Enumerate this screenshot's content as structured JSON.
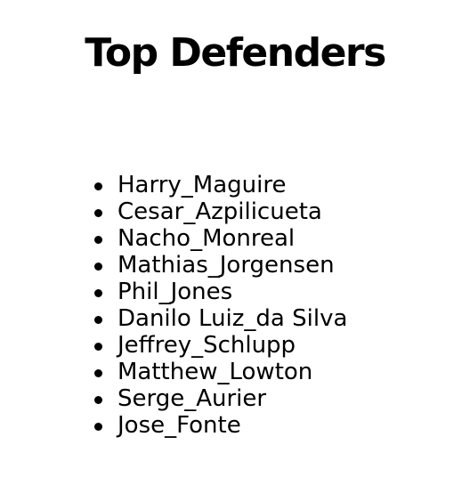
{
  "page": {
    "title": "Top Defenders"
  },
  "defenders": [
    "Harry_Maguire",
    "Cesar_Azpilicueta",
    "Nacho_Monreal",
    "Mathias_Jorgensen",
    "Phil_Jones",
    "Danilo Luiz_da Silva",
    "Jeffrey_Schlupp",
    "Matthew_Lowton",
    "Serge_Aurier",
    "Jose_Fonte"
  ]
}
